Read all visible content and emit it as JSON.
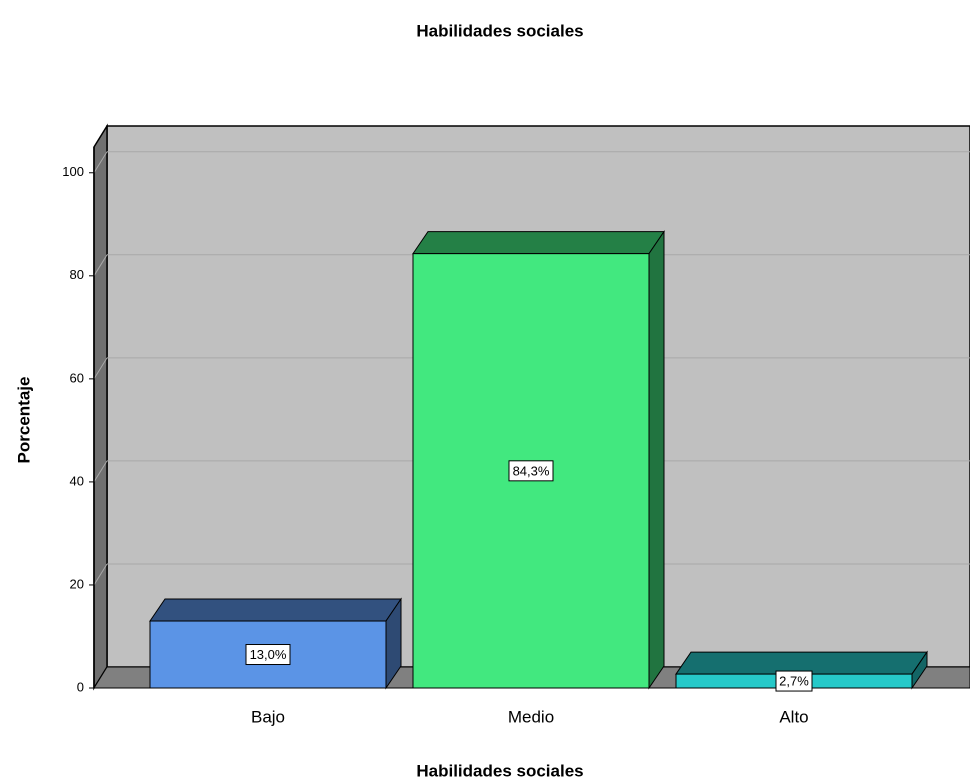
{
  "chart_data": {
    "type": "bar3d",
    "title": "Habilidades sociales",
    "x_label": "Habilidades sociales",
    "y_label": "Porcentaje",
    "categories": [
      "Bajo",
      "Medio",
      "Alto"
    ],
    "values": [
      13.0,
      84.3,
      2.7
    ],
    "value_labels": [
      "13,0%",
      "84,3%",
      "2,7%"
    ],
    "colors": [
      "#5b94e6",
      "#42e87f",
      "#26c9c9"
    ],
    "ylim": [
      0,
      105
    ],
    "yticks": [
      0,
      20,
      40,
      60,
      80,
      100
    ],
    "grid": true
  }
}
